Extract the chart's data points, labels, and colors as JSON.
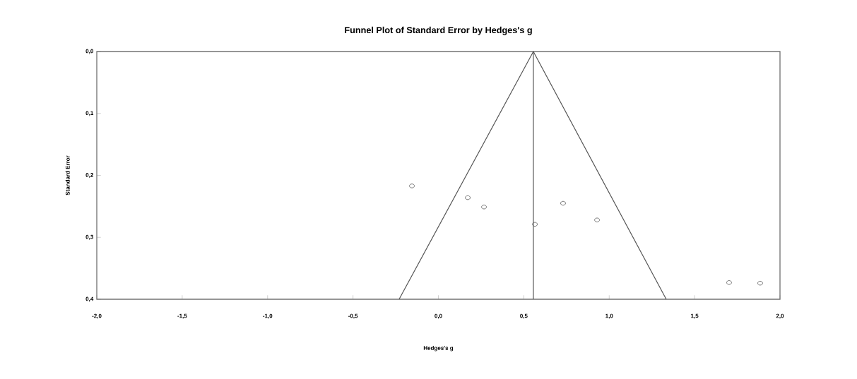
{
  "chart_data": {
    "type": "scatter",
    "title": "Funnel Plot of Standard Error by Hedges's g",
    "xlabel": "Hedges's g",
    "ylabel": "Standard Error",
    "xlim": [
      -2.0,
      2.0
    ],
    "ylim": [
      0.4,
      0.0
    ],
    "xticks": [
      {
        "value": -2.0,
        "label": "-2,0"
      },
      {
        "value": -1.5,
        "label": "-1,5"
      },
      {
        "value": -1.0,
        "label": "-1,0"
      },
      {
        "value": -0.5,
        "label": "-0,5"
      },
      {
        "value": 0.0,
        "label": "0,0"
      },
      {
        "value": 0.5,
        "label": "0,5"
      },
      {
        "value": 1.0,
        "label": "1,0"
      },
      {
        "value": 1.5,
        "label": "1,5"
      },
      {
        "value": 2.0,
        "label": "2,0"
      }
    ],
    "yticks": [
      {
        "value": 0.0,
        "label": "0,0"
      },
      {
        "value": 0.1,
        "label": "0,1"
      },
      {
        "value": 0.2,
        "label": "0,2"
      },
      {
        "value": 0.3,
        "label": "0,3"
      },
      {
        "value": 0.4,
        "label": "0,4"
      }
    ],
    "grid": false,
    "series": [
      {
        "type": "line",
        "color": "#555555",
        "x": [
          -0.23,
          0.556,
          1.334
        ],
        "values": [
          0.4,
          0.0,
          0.4
        ]
      },
      {
        "type": "line",
        "color": "#555555",
        "x": [
          0.556,
          0.556
        ],
        "values": [
          0.0,
          0.4
        ]
      },
      {
        "marker": "circle",
        "color": "#555555",
        "x": [
          -0.155,
          0.172,
          0.267,
          0.565,
          0.73,
          0.929,
          1.702,
          1.884
        ],
        "values": [
          0.217,
          0.236,
          0.251,
          0.279,
          0.245,
          0.272,
          0.373,
          0.374
        ]
      }
    ]
  }
}
